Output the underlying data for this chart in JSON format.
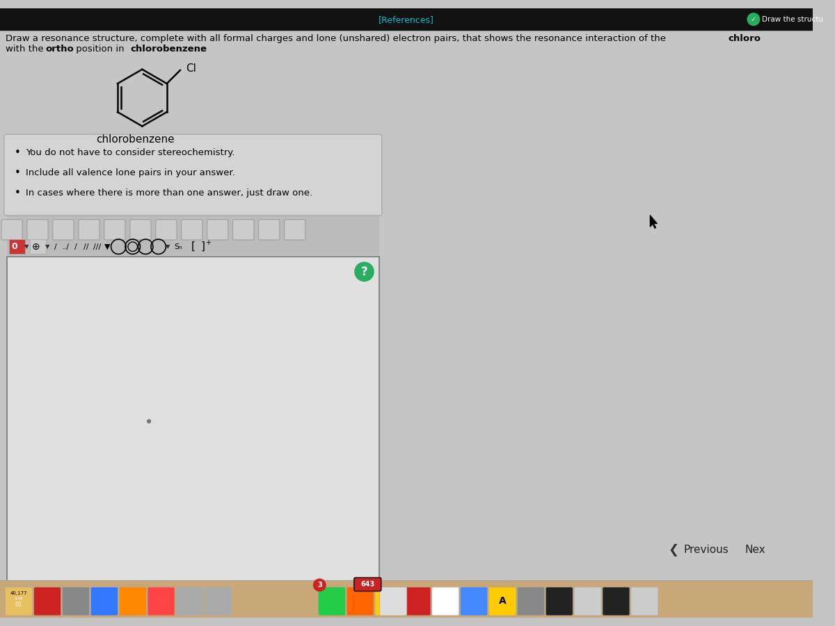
{
  "bg_color": "#c5c5c5",
  "top_bar_color": "#1a1a1a",
  "references_text": "[References]",
  "references_color": "#00bcd4",
  "instruction_line1": "Draw a resonance structure, complete with all formal charges and lone (unshared) electron pairs, that shows the resonance interaction of the ",
  "instruction_line1_bold": "chloro",
  "instruction_line2_pre": "with the ",
  "instruction_line2_bold1": "ortho",
  "instruction_line2_mid": " position in ",
  "instruction_line2_bold2": "chlorobenzene",
  "instruction_line2_end": ".",
  "label_text": "chlorobenzene",
  "bullet_points": [
    "You do not have to consider stereochemistry.",
    "Include all valence lone pairs in your answer.",
    "In cases where there is more than one answer, just draw one."
  ],
  "question_btn_color": "#27ae60",
  "previous_text": "Previous",
  "next_text": "Nex",
  "num1": "40,177",
  "num2": "643",
  "num3": "3",
  "month": "JUN",
  "day": "01",
  "cursor_arrow": true
}
